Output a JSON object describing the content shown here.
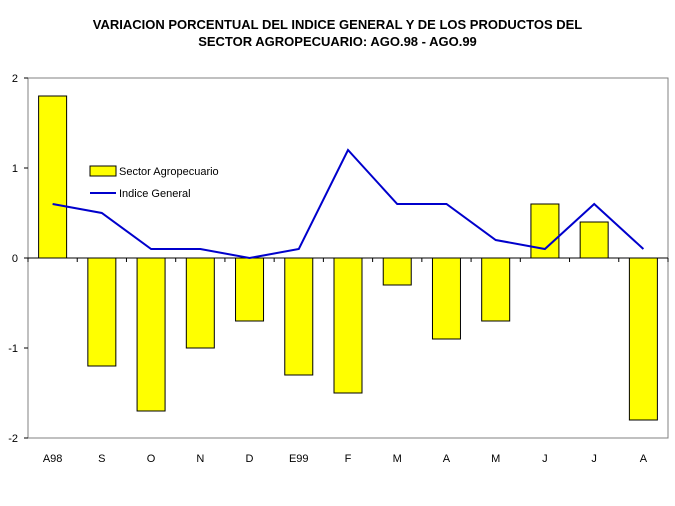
{
  "chart_data": {
    "type": "bar",
    "title_line1": "VARIACION PORCENTUAL DEL INDICE GENERAL Y DE LOS PRODUCTOS DEL",
    "title_line2": "SECTOR AGROPECUARIO: AGO.98 - AGO.99",
    "categories": [
      "A98",
      "S",
      "O",
      "N",
      "D",
      "E99",
      "F",
      "M",
      "A",
      "M",
      "J",
      "J",
      "A"
    ],
    "ylim": [
      -2,
      2
    ],
    "yticks": [
      2,
      1,
      0,
      -1,
      -2
    ],
    "grid": false,
    "legend_position": "left",
    "series": [
      {
        "name": "Sector Agropecuario",
        "kind": "bar",
        "color": "#ffff00",
        "values": [
          1.8,
          -1.2,
          -1.7,
          -1.0,
          -0.7,
          -1.3,
          -1.5,
          -0.3,
          -0.9,
          -0.7,
          0.6,
          0.4,
          -1.8
        ]
      },
      {
        "name": "Indice General",
        "kind": "line",
        "color": "#0000cc",
        "values": [
          0.6,
          0.5,
          0.1,
          0.1,
          0.0,
          0.1,
          1.2,
          0.6,
          0.6,
          0.2,
          0.1,
          0.6,
          0.1
        ]
      }
    ]
  }
}
